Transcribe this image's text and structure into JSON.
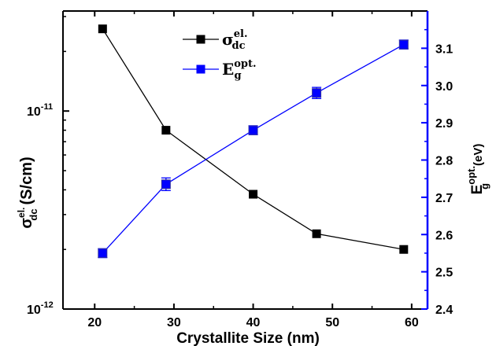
{
  "chart_data": {
    "type": "line",
    "x": [
      21,
      29,
      40,
      48,
      59
    ],
    "xlabel": "Crystallite Size (nm)",
    "xlim": [
      16,
      62
    ],
    "xticks": [
      20,
      30,
      40,
      50,
      60
    ],
    "left_axis": {
      "scale": "log",
      "ylim": [
        1e-12,
        3.2e-11
      ],
      "ticks": [
        {
          "value": 1e-11,
          "base": "10",
          "exp": "-11"
        },
        {
          "value": 1e-12,
          "base": "10",
          "exp": "-12"
        }
      ],
      "label": {
        "main": "σ",
        "sup": "el.",
        "sub": "dc",
        "unit": "(S/cm)"
      },
      "color": "#000000"
    },
    "right_axis": {
      "scale": "linear",
      "ylim": [
        2.4,
        3.2
      ],
      "ticks": [
        "2.4",
        "2.5",
        "2.6",
        "2.7",
        "2.8",
        "2.9",
        "3.0",
        "3.1"
      ],
      "label": {
        "main": "E",
        "sup": "opt.",
        "sub": "g",
        "unit": "(eV)"
      },
      "color": "#0000ff"
    },
    "series": [
      {
        "axis": "left",
        "legend": {
          "main": "σ",
          "sup": "el.",
          "sub": "dc"
        },
        "color": "#000000",
        "marker": "square",
        "values": [
          2.6e-11,
          8e-12,
          3.8e-12,
          2.4e-12,
          2e-12
        ]
      },
      {
        "axis": "right",
        "legend": {
          "main": "E",
          "sup": "opt.",
          "sub": "g"
        },
        "color": "#0000ff",
        "marker": "square",
        "values": [
          2.55,
          2.735,
          2.88,
          2.98,
          3.11
        ],
        "errors": [
          0.012,
          0.017,
          0.012,
          0.015,
          0.012
        ]
      }
    ],
    "legend_position": "top-center",
    "grid": false
  }
}
